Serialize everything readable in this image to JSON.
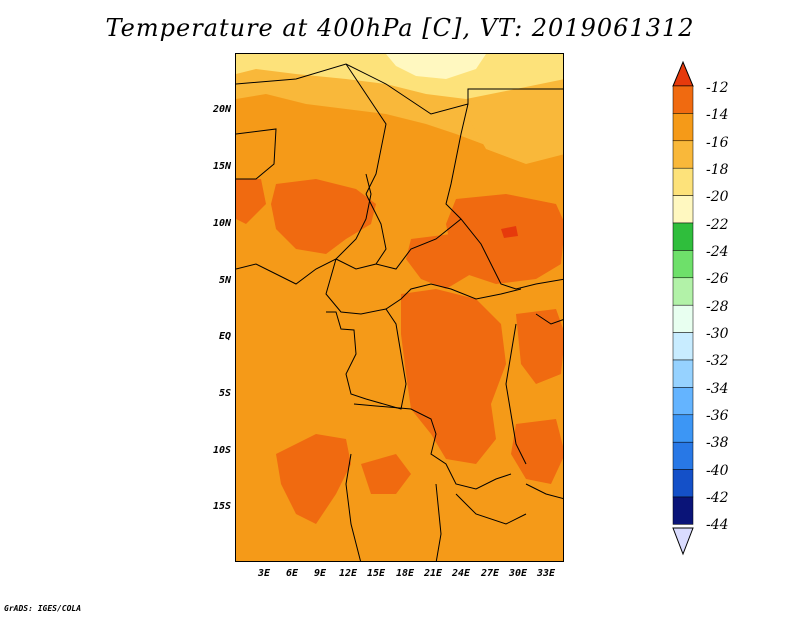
{
  "title": "Temperature at 400hPa [C], VT: 2019061312",
  "lat_labels": [
    "20N",
    "15N",
    "10N",
    "5N",
    "EQ",
    "5S",
    "10S",
    "15S"
  ],
  "lon_labels": [
    "3E",
    "6E",
    "9E",
    "12E",
    "15E",
    "18E",
    "21E",
    "24E",
    "27E",
    "30E",
    "33E"
  ],
  "colorbar": {
    "labels": [
      "-12",
      "-14",
      "-16",
      "-18",
      "-20",
      "-22",
      "-24",
      "-26",
      "-28",
      "-30",
      "-32",
      "-34",
      "-36",
      "-38",
      "-40",
      "-42",
      "-44"
    ],
    "colors": [
      "#e63a0c",
      "#f06a10",
      "#f59a18",
      "#f9b83a",
      "#fde27a",
      "#fff8c0",
      "#2fbe3c",
      "#6ee06a",
      "#b2f2a8",
      "#e8fff0",
      "#c8ecff",
      "#96d2ff",
      "#64b4ff",
      "#3c96f5",
      "#2878e6",
      "#1450c8",
      "#0a1478"
    ],
    "top_arrow_color": "#e63a0c",
    "bottom_arrow_color": "#dadcff"
  },
  "credit": "GrADS: IGES/COLA"
}
